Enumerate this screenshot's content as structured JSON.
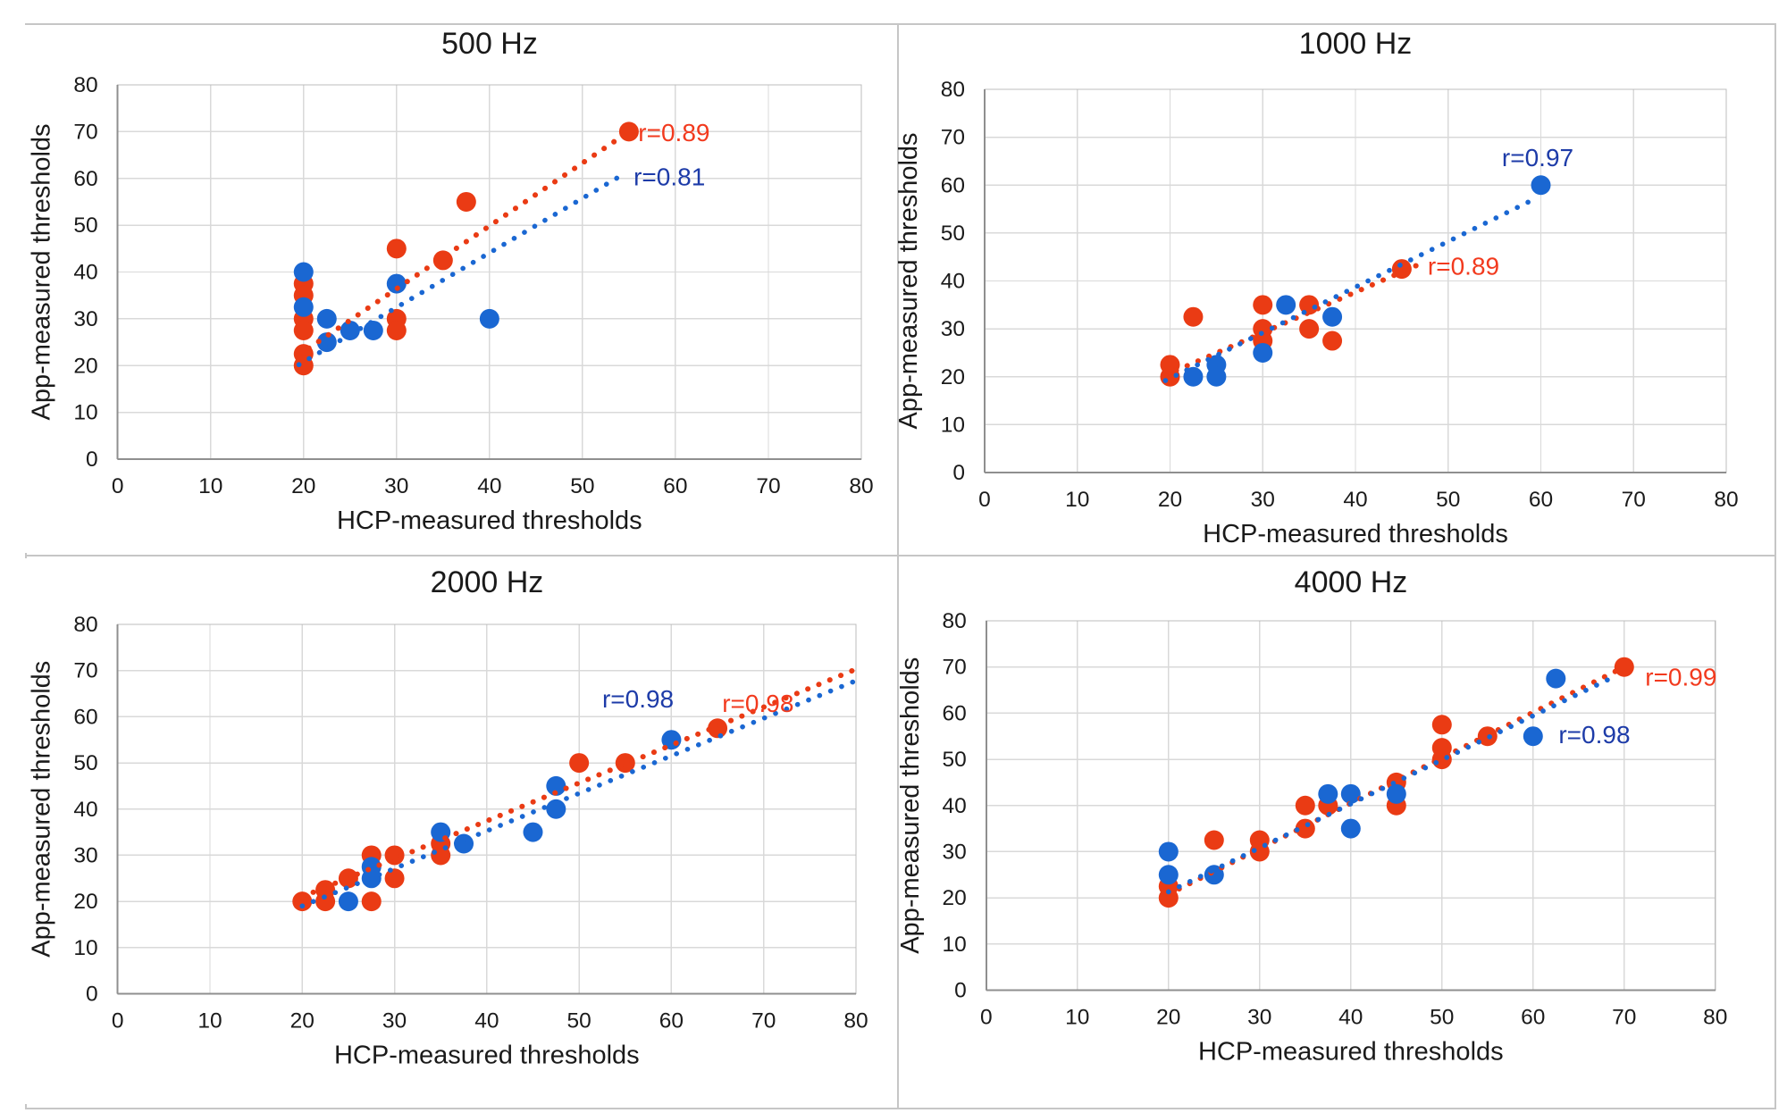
{
  "figure": {
    "xlabel": "HCP-measured thresholds",
    "ylabel": "App-measured thresholds",
    "xticks": [
      "0",
      "10",
      "20",
      "30",
      "40",
      "50",
      "60",
      "70",
      "80"
    ],
    "yticks": [
      "0",
      "10",
      "20",
      "30",
      "40",
      "50",
      "60",
      "70",
      "80"
    ]
  },
  "colors": {
    "red_point": "#ea3b14",
    "blue_point": "#1a67d2",
    "red_label": "#f23a1e",
    "blue_label": "#1d3ba8",
    "gridline": "#d9d9d9",
    "plot_border": "#bcbcbc",
    "axis_line": "#8f8f8f",
    "text": "#1a1a1a"
  },
  "chart_data": [
    {
      "id": "500hz",
      "type": "scatter",
      "title": "500 Hz",
      "xlabel": "HCP-measured thresholds",
      "ylabel": "App-measured thresholds",
      "xlim": [
        0,
        80
      ],
      "ylim": [
        0,
        80
      ],
      "grid": true,
      "legend": false,
      "series": [
        {
          "name": "red-series",
          "color_key": "red_point",
          "label_color_key": "red_label",
          "r_label": "r=0.89",
          "r_label_pos": [
            56,
            68
          ],
          "points": [
            [
              20,
              37.5
            ],
            [
              20,
              35
            ],
            [
              20,
              30
            ],
            [
              20,
              27.5
            ],
            [
              20,
              22.5
            ],
            [
              20,
              20
            ],
            [
              30,
              45
            ],
            [
              30,
              30
            ],
            [
              30,
              27.5
            ],
            [
              35,
              42.5
            ],
            [
              37.5,
              55
            ],
            [
              55,
              70
            ]
          ],
          "trendline": [
            [
              19.5,
              22.3
            ],
            [
              55,
              70
            ]
          ]
        },
        {
          "name": "blue-series",
          "color_key": "blue_point",
          "label_color_key": "blue_label",
          "r_label": "r=0.81",
          "r_label_pos": [
            55.5,
            58.5
          ],
          "points": [
            [
              20,
              40
            ],
            [
              20,
              32.5
            ],
            [
              22.5,
              30
            ],
            [
              22.5,
              25
            ],
            [
              25,
              27.5
            ],
            [
              27.5,
              27.5
            ],
            [
              30,
              37.5
            ],
            [
              40,
              30
            ]
          ],
          "trendline": [
            [
              19.5,
              20.2
            ],
            [
              54.5,
              61
            ]
          ]
        }
      ]
    },
    {
      "id": "1000hz",
      "type": "scatter",
      "title": "1000 Hz",
      "xlabel": "HCP-measured thresholds",
      "ylabel": "App-measured thresholds",
      "xlim": [
        0,
        80
      ],
      "ylim": [
        0,
        80
      ],
      "grid": true,
      "legend": false,
      "series": [
        {
          "name": "red-series",
          "color_key": "red_point",
          "label_color_key": "red_label",
          "r_label": "r=0.89",
          "r_label_pos": [
            47.8,
            41.3
          ],
          "points": [
            [
              20,
              22.5
            ],
            [
              20,
              20
            ],
            [
              22.5,
              32.5
            ],
            [
              30,
              35
            ],
            [
              30,
              30
            ],
            [
              30,
              27.5
            ],
            [
              35,
              35
            ],
            [
              35,
              30
            ],
            [
              37.5,
              27.5
            ],
            [
              45,
              42.5
            ]
          ],
          "trendline": [
            [
              19.5,
              20.3
            ],
            [
              47.5,
              44
            ]
          ]
        },
        {
          "name": "blue-series",
          "color_key": "blue_point",
          "label_color_key": "blue_label",
          "r_label": "r=0.97",
          "r_label_pos": [
            55.8,
            64
          ],
          "points": [
            [
              22.5,
              20
            ],
            [
              25,
              22.5
            ],
            [
              25,
              20
            ],
            [
              30,
              25
            ],
            [
              32.5,
              35
            ],
            [
              37.5,
              32.5
            ],
            [
              60,
              60
            ]
          ],
          "trendline": [
            [
              19.5,
              19.2
            ],
            [
              59,
              56.8
            ]
          ]
        }
      ]
    },
    {
      "id": "2000hz",
      "type": "scatter",
      "title": "2000 Hz",
      "xlabel": "HCP-measured thresholds",
      "ylabel": "App-measured thresholds",
      "xlim": [
        0,
        80
      ],
      "ylim": [
        0,
        80
      ],
      "grid": true,
      "legend": false,
      "series": [
        {
          "name": "red-series",
          "color_key": "red_point",
          "label_color_key": "red_label",
          "r_label": "r=0.98",
          "r_label_pos": [
            65.5,
            61
          ],
          "points": [
            [
              20,
              20
            ],
            [
              22.5,
              22.5
            ],
            [
              22.5,
              20
            ],
            [
              25,
              25
            ],
            [
              27.5,
              30
            ],
            [
              27.5,
              20
            ],
            [
              30,
              30
            ],
            [
              30,
              25
            ],
            [
              35,
              32.5
            ],
            [
              35,
              30
            ],
            [
              50,
              50
            ],
            [
              55,
              50
            ],
            [
              65,
              57.5
            ]
          ],
          "trendline": [
            [
              20,
              21
            ],
            [
              80,
              70.3
            ]
          ]
        },
        {
          "name": "blue-series",
          "color_key": "blue_point",
          "label_color_key": "blue_label",
          "r_label": "r=0.98",
          "r_label_pos": [
            52.5,
            62
          ],
          "points": [
            [
              25,
              20
            ],
            [
              27.5,
              27.5
            ],
            [
              27.5,
              25
            ],
            [
              35,
              35
            ],
            [
              37.5,
              32.5
            ],
            [
              45,
              35
            ],
            [
              47.5,
              45
            ],
            [
              47.5,
              40
            ],
            [
              60,
              55
            ]
          ],
          "trendline": [
            [
              20,
              19
            ],
            [
              80,
              67.8
            ]
          ]
        }
      ]
    },
    {
      "id": "4000hz",
      "type": "scatter",
      "title": "4000 Hz",
      "xlabel": "HCP-measured thresholds",
      "ylabel": "App-measured thresholds",
      "xlim": [
        0,
        80
      ],
      "ylim": [
        0,
        80
      ],
      "grid": true,
      "legend": false,
      "series": [
        {
          "name": "red-series",
          "color_key": "red_point",
          "label_color_key": "red_label",
          "r_label": "r=0.99",
          "r_label_pos": [
            72.3,
            66
          ],
          "points": [
            [
              20,
              22.5
            ],
            [
              20,
              20
            ],
            [
              25,
              32.5
            ],
            [
              30,
              32.5
            ],
            [
              30,
              30
            ],
            [
              35,
              40
            ],
            [
              35,
              35
            ],
            [
              37.5,
              40
            ],
            [
              45,
              45
            ],
            [
              45,
              40
            ],
            [
              50,
              57.5
            ],
            [
              50,
              52.5
            ],
            [
              50,
              50
            ],
            [
              55,
              55
            ],
            [
              70,
              70
            ]
          ],
          "trendline": [
            [
              20,
              20.8
            ],
            [
              70,
              70
            ]
          ]
        },
        {
          "name": "blue-series",
          "color_key": "blue_point",
          "label_color_key": "blue_label",
          "r_label": "r=0.98",
          "r_label_pos": [
            62.8,
            53.5
          ],
          "points": [
            [
              20,
              30
            ],
            [
              20,
              25
            ],
            [
              25,
              25
            ],
            [
              37.5,
              42.5
            ],
            [
              40,
              42.5
            ],
            [
              40,
              35
            ],
            [
              45,
              42.5
            ],
            [
              60,
              55
            ],
            [
              62.5,
              67.5
            ]
          ],
          "trendline": [
            [
              20,
              21.3
            ],
            [
              69,
              68
            ]
          ]
        }
      ]
    }
  ]
}
